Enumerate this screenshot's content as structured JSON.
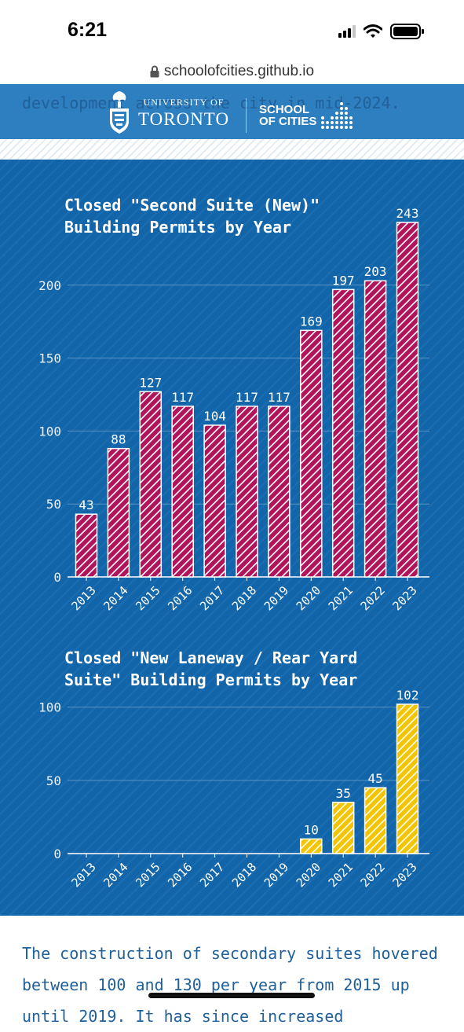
{
  "status_bar": {
    "time": "6:21",
    "icons": [
      "signal-icon",
      "wifi-icon",
      "battery-icon"
    ]
  },
  "browser": {
    "url": "schoolofcities.github.io",
    "lock_icon": "lock-icon"
  },
  "header": {
    "background_text": "development across the city in mid-2024.",
    "university_small": "UNIVERSITY OF",
    "university_big": "TORONTO",
    "school_line1": "SCHOOL",
    "school_line2": "OF CITIES"
  },
  "colors": {
    "panel": "#1466a9",
    "suite_bars": "#b0145a",
    "laneway_bars": "#f2c500",
    "grid": "#5b95c8"
  },
  "chart_data": [
    {
      "type": "bar",
      "title_line1": "Closed \"Second Suite (New)\"",
      "title_line2": "Building Permits by Year",
      "categories": [
        "2013",
        "2014",
        "2015",
        "2016",
        "2017",
        "2018",
        "2019",
        "2020",
        "2021",
        "2022",
        "2023"
      ],
      "values": [
        43,
        88,
        127,
        117,
        104,
        117,
        117,
        169,
        197,
        203,
        243
      ],
      "yticks": [
        0,
        50,
        100,
        150,
        200
      ],
      "ylim": [
        0,
        243
      ],
      "color": "#b0145a",
      "pattern": "hatched"
    },
    {
      "type": "bar",
      "title_line1": "Closed \"New Laneway / Rear Yard",
      "title_line2": "Suite\" Building Permits by Year",
      "categories": [
        "2013",
        "2014",
        "2015",
        "2016",
        "2017",
        "2018",
        "2019",
        "2020",
        "2021",
        "2022",
        "2023"
      ],
      "values": [
        0,
        0,
        0,
        0,
        0,
        0,
        0,
        10,
        35,
        45,
        102
      ],
      "yticks": [
        0,
        50,
        100
      ],
      "ylim": [
        0,
        102
      ],
      "color": "#f2c500",
      "pattern": "hatched"
    }
  ],
  "body_text": "The construction of secondary suites hovered between 100 and 130 per year from 2015 up until 2019. It has since increased"
}
